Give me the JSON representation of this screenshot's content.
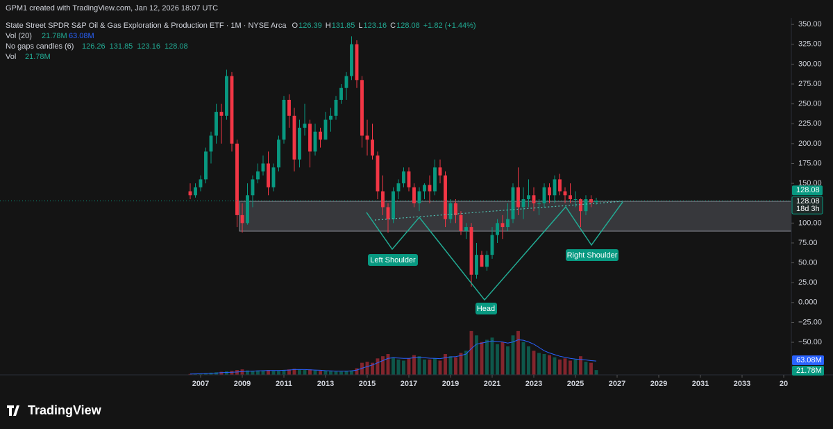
{
  "chart_data": {
    "type": "candlestick",
    "credit": "GPM1 created with TradingView.com, Jan 12, 2026 18:07 UTC",
    "title": "State Street SPDR S&P Oil & Gas Exploration & Production ETF · 1M · NYSE Arca",
    "ohlc_letters": [
      "O",
      "H",
      "L",
      "C"
    ],
    "change_label": "+1.82 (+1.44%)",
    "x": [
      2006.5,
      2006.75,
      2007,
      2007.25,
      2007.5,
      2007.75,
      2008,
      2008.25,
      2008.5,
      2008.75,
      2009,
      2009.25,
      2009.5,
      2009.75,
      2010,
      2010.25,
      2010.5,
      2010.75,
      2011,
      2011.25,
      2011.5,
      2011.75,
      2012,
      2012.25,
      2012.5,
      2012.75,
      2013,
      2013.25,
      2013.5,
      2013.75,
      2014,
      2014.25,
      2014.5,
      2014.75,
      2015,
      2015.25,
      2015.5,
      2015.75,
      2016,
      2016.25,
      2016.5,
      2016.75,
      2017,
      2017.25,
      2017.5,
      2017.75,
      2018,
      2018.25,
      2018.5,
      2018.75,
      2019,
      2019.25,
      2019.5,
      2019.75,
      2020,
      2020.25,
      2020.5,
      2020.75,
      2021,
      2021.25,
      2021.5,
      2021.75,
      2022,
      2022.25,
      2022.5,
      2022.75,
      2023,
      2023.25,
      2023.5,
      2023.75,
      2024,
      2024.25,
      2024.5,
      2024.75,
      2025,
      2025.25,
      2025.5,
      2025.75,
      2026
    ],
    "open": [
      140,
      135,
      145,
      155,
      190,
      210,
      240,
      235,
      285,
      200,
      110,
      100,
      135,
      155,
      165,
      175,
      145,
      170,
      205,
      255,
      235,
      180,
      220,
      225,
      190,
      215,
      205,
      230,
      235,
      255,
      270,
      285,
      325,
      280,
      210,
      205,
      185,
      140,
      120,
      105,
      140,
      150,
      165,
      145,
      125,
      140,
      148,
      140,
      170,
      160,
      105,
      125,
      110,
      90,
      95,
      35,
      60,
      45,
      60,
      85,
      100,
      95,
      105,
      145,
      120,
      130,
      135,
      125,
      125,
      145,
      135,
      155,
      140,
      135,
      130,
      130,
      115,
      130,
      126.39
    ],
    "high": [
      150,
      150,
      160,
      195,
      215,
      250,
      250,
      293,
      290,
      205,
      125,
      150,
      160,
      175,
      185,
      190,
      175,
      210,
      260,
      262,
      245,
      230,
      250,
      230,
      225,
      220,
      240,
      245,
      260,
      275,
      290,
      335,
      330,
      285,
      230,
      225,
      190,
      160,
      125,
      145,
      155,
      170,
      170,
      150,
      145,
      150,
      160,
      180,
      180,
      165,
      130,
      130,
      115,
      100,
      100,
      75,
      65,
      65,
      95,
      105,
      110,
      125,
      150,
      170,
      145,
      155,
      145,
      130,
      150,
      150,
      160,
      162,
      145,
      150,
      140,
      131,
      135,
      135,
      131.85
    ],
    "low": [
      130,
      132,
      140,
      150,
      175,
      200,
      200,
      230,
      190,
      95,
      88,
      98,
      120,
      150,
      160,
      135,
      140,
      165,
      200,
      220,
      165,
      170,
      210,
      170,
      185,
      195,
      205,
      215,
      230,
      250,
      255,
      280,
      270,
      195,
      185,
      180,
      130,
      110,
      88,
      100,
      130,
      145,
      140,
      120,
      115,
      130,
      125,
      135,
      150,
      95,
      100,
      100,
      85,
      80,
      20,
      30,
      45,
      40,
      55,
      75,
      80,
      90,
      100,
      110,
      105,
      120,
      115,
      110,
      120,
      125,
      125,
      135,
      125,
      125,
      120,
      95,
      110,
      120,
      123.16
    ],
    "close": [
      135,
      145,
      155,
      190,
      210,
      240,
      235,
      285,
      200,
      110,
      100,
      135,
      155,
      165,
      175,
      145,
      170,
      205,
      255,
      235,
      180,
      220,
      225,
      190,
      215,
      205,
      230,
      235,
      255,
      270,
      285,
      325,
      280,
      210,
      205,
      185,
      140,
      120,
      105,
      140,
      150,
      165,
      145,
      125,
      140,
      148,
      140,
      170,
      160,
      105,
      125,
      110,
      90,
      95,
      35,
      60,
      45,
      60,
      85,
      100,
      95,
      105,
      145,
      120,
      130,
      135,
      125,
      125,
      145,
      135,
      155,
      140,
      135,
      130,
      130,
      115,
      130,
      126,
      128.08
    ],
    "volume": [
      4,
      5,
      6,
      8,
      10,
      12,
      14,
      16,
      18,
      22,
      25,
      20,
      18,
      20,
      20,
      22,
      18,
      18,
      22,
      25,
      28,
      25,
      22,
      25,
      20,
      18,
      18,
      16,
      15,
      15,
      18,
      20,
      30,
      55,
      60,
      55,
      75,
      85,
      95,
      80,
      70,
      65,
      75,
      90,
      85,
      70,
      70,
      75,
      65,
      95,
      85,
      80,
      100,
      110,
      200,
      180,
      150,
      160,
      170,
      140,
      150,
      130,
      180,
      200,
      150,
      130,
      110,
      100,
      95,
      90,
      80,
      70,
      75,
      65,
      70,
      85,
      60,
      55,
      21.78
    ],
    "volume_ma": [
      4,
      4.5,
      5,
      6,
      7,
      8,
      10,
      11,
      12,
      13,
      15,
      16,
      17,
      18,
      19,
      20,
      20,
      20,
      21,
      22,
      24,
      24,
      24,
      23,
      22,
      21,
      19,
      18,
      17,
      17,
      17,
      18,
      22,
      30,
      38,
      45,
      55,
      65,
      75,
      78,
      77,
      75,
      75,
      78,
      80,
      78,
      76,
      75,
      74,
      78,
      82,
      83,
      88,
      95,
      120,
      140,
      145,
      150,
      155,
      152,
      150,
      145,
      150,
      160,
      158,
      150,
      140,
      125,
      110,
      100,
      92,
      85,
      80,
      75,
      72,
      70,
      68,
      65,
      63.08
    ],
    "vol_legend": {
      "title": "Vol (20)",
      "labels": [
        "21.78M",
        "63.08M"
      ]
    },
    "nogaps_legend": {
      "title": "No gaps candles (6)",
      "values": [
        126.26,
        131.85,
        123.16,
        128.08
      ]
    },
    "vol2_legend": {
      "title": "Vol"
    },
    "countdown": "18d 3h",
    "up_color": "#089981",
    "down_color": "#f23645",
    "ma_color": "#2962ff",
    "xlim": [
      1997.367,
      2035.367
    ],
    "xticks": [
      2007,
      2009,
      2011,
      2013,
      2015,
      2017,
      2019,
      2021,
      2023,
      2025,
      2027,
      2029,
      2031,
      2033,
      {
        "value": 2035,
        "label": "20"
      }
    ],
    "ylim": [
      -91,
      358
    ],
    "yticks": [
      {
        "value": 350,
        "label": "350.00"
      },
      {
        "value": 325,
        "label": "325.00"
      },
      {
        "value": 300,
        "label": "300.00"
      },
      {
        "value": 275,
        "label": "275.00"
      },
      {
        "value": 250,
        "label": "250.00"
      },
      {
        "value": 225,
        "label": "225.00"
      },
      {
        "value": 200,
        "label": "200.00"
      },
      {
        "value": 175,
        "label": "175.00"
      },
      {
        "value": 150,
        "label": "150.00"
      },
      {
        "value": 100,
        "label": "100.00"
      },
      {
        "value": 75,
        "label": "75.00"
      },
      {
        "value": 50,
        "label": "50.00"
      },
      {
        "value": 25,
        "label": "25.00"
      },
      {
        "value": 0,
        "label": "0.000"
      },
      {
        "value": -25,
        "label": "−25.00"
      },
      {
        "value": -50,
        "label": "−50.00"
      }
    ],
    "volume_lim": [
      0,
      380
    ],
    "annotations": [
      "Left Shoulder",
      "Head",
      "Right Shoulder"
    ],
    "brand": "TradingView"
  }
}
